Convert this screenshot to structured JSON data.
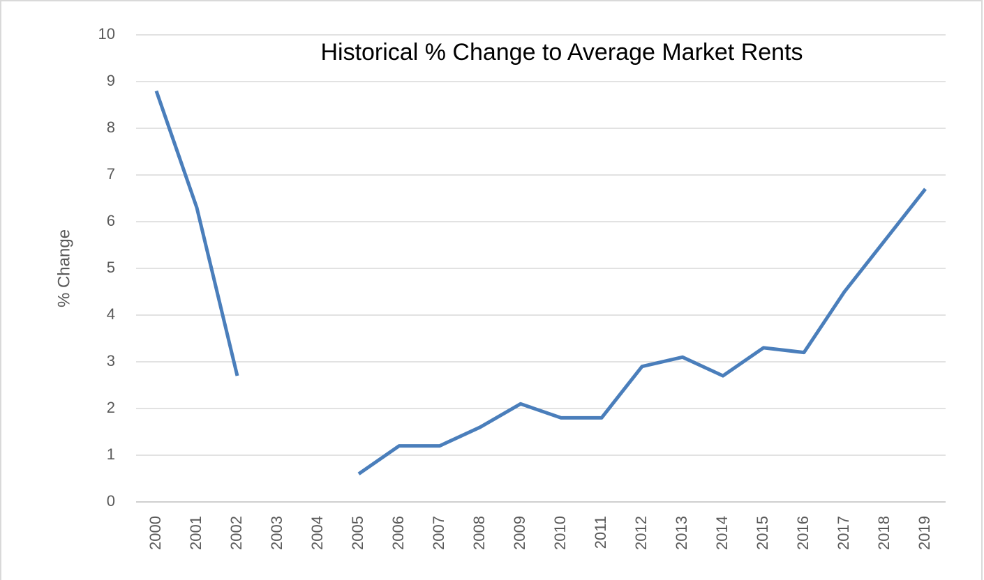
{
  "chart_data": {
    "type": "line",
    "title": "Historical % Change to Average Market Rents",
    "y_label": "% Change",
    "categories": [
      "2000",
      "2001",
      "2002",
      "2003",
      "2004",
      "2005",
      "2006",
      "2007",
      "2008",
      "2009",
      "2010",
      "2011",
      "2012",
      "2013",
      "2014",
      "2015",
      "2016",
      "2017",
      "2018",
      "2019"
    ],
    "series": [
      {
        "name": "% Change",
        "color": "#4a7ebb",
        "values": [
          8.8,
          6.3,
          2.7,
          null,
          null,
          0.6,
          1.2,
          1.2,
          1.6,
          2.1,
          1.8,
          1.8,
          2.9,
          3.1,
          2.7,
          3.3,
          3.2,
          4.5,
          5.6,
          6.7
        ]
      }
    ],
    "ylim": [
      0,
      10
    ],
    "yticks": [
      0,
      1,
      2,
      3,
      4,
      5,
      6,
      7,
      8,
      9,
      10
    ],
    "grid": true
  }
}
